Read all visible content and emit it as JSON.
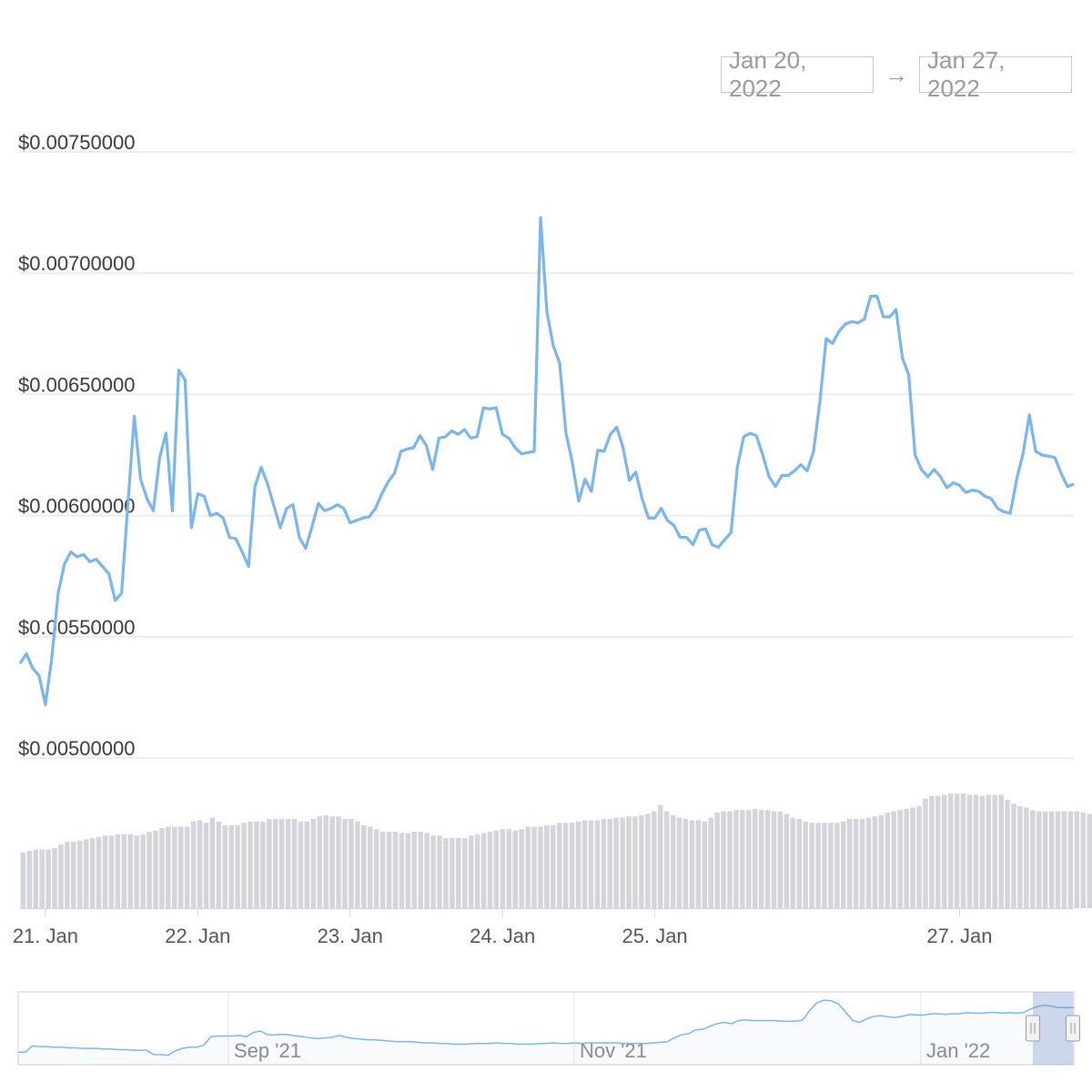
{
  "range_selector": {
    "from": "Jan 20, 2022",
    "arrow": "→",
    "to": "Jan 27, 2022"
  },
  "colors": {
    "line": "#7cb5ec",
    "volume": "#d3d5db",
    "grid": "#e9ecf2",
    "navigator_mask": "rgba(102,133,194,0.3)"
  },
  "chart_data": {
    "type": "line",
    "title": "",
    "series": [
      {
        "values": [
          0.00539,
          0.00543,
          0.00537,
          0.00534,
          0.00522,
          0.00541,
          0.00568,
          0.0058,
          0.00585,
          0.00583,
          0.00584,
          0.00581,
          0.00582,
          0.00579,
          0.00576,
          0.00565,
          0.00568,
          0.00605,
          0.00641,
          0.00615,
          0.00607,
          0.00602,
          0.00624,
          0.00634,
          0.00602,
          0.0066,
          0.00656,
          0.00595,
          0.00609,
          0.00608,
          0.006,
          0.00601,
          0.00599,
          0.00591,
          0.005905,
          0.00585,
          0.00579,
          0.00612,
          0.0062,
          0.00613,
          0.00604,
          0.00595,
          0.00603,
          0.006045,
          0.00591,
          0.005865,
          0.005955,
          0.00605,
          0.00602,
          0.00603,
          0.006045,
          0.00603,
          0.00597,
          0.00598,
          0.00599,
          0.005995,
          0.00603,
          0.00609,
          0.00614,
          0.006175,
          0.006265,
          0.006275,
          0.00628,
          0.00633,
          0.00629,
          0.00619,
          0.00632,
          0.006325,
          0.00635,
          0.006335,
          0.006355,
          0.00632,
          0.006325,
          0.006445,
          0.00644,
          0.006445,
          0.006335,
          0.00632,
          0.00628,
          0.006255,
          0.00626,
          0.006265,
          0.00723,
          0.00684,
          0.0067,
          0.00663,
          0.00634,
          0.00622,
          0.00606,
          0.00615,
          0.0061,
          0.00627,
          0.006265,
          0.006335,
          0.006365,
          0.00628,
          0.006145,
          0.00618,
          0.00607,
          0.00599,
          0.00599,
          0.00603,
          0.00598,
          0.00596,
          0.00591,
          0.00591,
          0.00588,
          0.00594,
          0.005945,
          0.00588,
          0.00587,
          0.0059,
          0.00593,
          0.0062,
          0.006325,
          0.00634,
          0.00633,
          0.00625,
          0.00616,
          0.00612,
          0.006165,
          0.006165,
          0.006185,
          0.00621,
          0.006185,
          0.006265,
          0.00647,
          0.00673,
          0.00671,
          0.00676,
          0.00679,
          0.0068,
          0.006795,
          0.00681,
          0.006905,
          0.006905,
          0.00682,
          0.00682,
          0.00685,
          0.00665,
          0.00658,
          0.00625,
          0.00619,
          0.00616,
          0.00619,
          0.00616,
          0.006115,
          0.006135,
          0.006125,
          0.006095,
          0.006105,
          0.0061,
          0.00608,
          0.00607,
          0.00603,
          0.006015,
          0.00601,
          0.00615,
          0.006255,
          0.006415,
          0.006265,
          0.00625,
          0.006245,
          0.00624,
          0.006175,
          0.00612,
          0.00613
        ]
      }
    ],
    "x_start": "2022-01-20T20:00",
    "x_step_hours": 1,
    "x_ticks": [
      "21. Jan",
      "22. Jan",
      "23. Jan",
      "24. Jan",
      "25. Jan",
      "27. Jan"
    ],
    "x_tick_dates": [
      "2022-01-21",
      "2022-01-22",
      "2022-01-23",
      "2022-01-24",
      "2022-01-25",
      "2022-01-27"
    ],
    "y_ticks": [
      "$0.00750000",
      "$0.00700000",
      "$0.00650000",
      "$0.00600000",
      "$0.00550000",
      "$0.00500000"
    ],
    "ylim": [
      0.005,
      0.0075
    ],
    "grid": true,
    "volume": [
      0.44,
      0.45,
      0.46,
      0.46,
      0.46,
      0.47,
      0.5,
      0.52,
      0.52,
      0.53,
      0.54,
      0.55,
      0.56,
      0.57,
      0.57,
      0.58,
      0.58,
      0.58,
      0.57,
      0.58,
      0.6,
      0.61,
      0.63,
      0.64,
      0.64,
      0.64,
      0.64,
      0.68,
      0.69,
      0.67,
      0.71,
      0.68,
      0.65,
      0.65,
      0.65,
      0.67,
      0.68,
      0.68,
      0.68,
      0.7,
      0.7,
      0.7,
      0.7,
      0.7,
      0.68,
      0.68,
      0.7,
      0.72,
      0.73,
      0.72,
      0.72,
      0.7,
      0.7,
      0.68,
      0.65,
      0.64,
      0.62,
      0.6,
      0.6,
      0.6,
      0.59,
      0.59,
      0.6,
      0.6,
      0.59,
      0.57,
      0.57,
      0.55,
      0.55,
      0.55,
      0.55,
      0.57,
      0.58,
      0.59,
      0.6,
      0.61,
      0.62,
      0.62,
      0.61,
      0.62,
      0.64,
      0.64,
      0.64,
      0.65,
      0.65,
      0.67,
      0.67,
      0.67,
      0.68,
      0.69,
      0.69,
      0.69,
      0.7,
      0.7,
      0.71,
      0.71,
      0.72,
      0.72,
      0.73,
      0.74,
      0.76,
      0.81,
      0.76,
      0.73,
      0.71,
      0.7,
      0.69,
      0.69,
      0.68,
      0.71,
      0.75,
      0.76,
      0.76,
      0.77,
      0.77,
      0.77,
      0.78,
      0.77,
      0.77,
      0.76,
      0.76,
      0.74,
      0.71,
      0.7,
      0.68,
      0.67,
      0.67,
      0.67,
      0.67,
      0.67,
      0.68,
      0.7,
      0.7,
      0.7,
      0.71,
      0.72,
      0.73,
      0.75,
      0.76,
      0.77,
      0.78,
      0.79,
      0.8,
      0.86,
      0.88,
      0.88,
      0.89,
      0.9,
      0.9,
      0.9,
      0.89,
      0.89,
      0.88,
      0.89,
      0.89,
      0.89,
      0.85,
      0.82,
      0.8,
      0.79,
      0.77,
      0.76,
      0.76,
      0.76,
      0.76,
      0.76,
      0.76,
      0.76,
      0.75,
      0.74,
      0.78,
      0.76,
      0.74,
      0.72,
      0.71,
      0.7,
      0.69,
      0.7
    ]
  },
  "navigator": {
    "labels": [
      "Sep '21",
      "Nov '21",
      "Jan '22"
    ],
    "values": [
      0.1,
      0.1,
      0.2,
      0.19,
      0.19,
      0.18,
      0.18,
      0.17,
      0.17,
      0.16,
      0.16,
      0.16,
      0.15,
      0.15,
      0.14,
      0.14,
      0.13,
      0.13,
      0.13,
      0.06,
      0.06,
      0.05,
      0.12,
      0.16,
      0.18,
      0.18,
      0.21,
      0.35,
      0.36,
      0.36,
      0.36,
      0.37,
      0.35,
      0.42,
      0.44,
      0.38,
      0.38,
      0.39,
      0.38,
      0.36,
      0.35,
      0.33,
      0.32,
      0.33,
      0.34,
      0.37,
      0.34,
      0.32,
      0.31,
      0.3,
      0.3,
      0.29,
      0.28,
      0.27,
      0.27,
      0.27,
      0.26,
      0.25,
      0.25,
      0.24,
      0.24,
      0.23,
      0.23,
      0.23,
      0.24,
      0.24,
      0.24,
      0.25,
      0.24,
      0.24,
      0.23,
      0.23,
      0.23,
      0.24,
      0.24,
      0.25,
      0.24,
      0.24,
      0.25,
      0.24,
      0.25,
      0.25,
      0.25,
      0.25,
      0.25,
      0.24,
      0.24,
      0.24,
      0.24,
      0.25,
      0.26,
      0.27,
      0.33,
      0.38,
      0.4,
      0.46,
      0.47,
      0.52,
      0.56,
      0.58,
      0.56,
      0.61,
      0.62,
      0.61,
      0.61,
      0.61,
      0.61,
      0.6,
      0.6,
      0.6,
      0.62,
      0.78,
      0.9,
      0.94,
      0.93,
      0.88,
      0.75,
      0.61,
      0.58,
      0.64,
      0.68,
      0.69,
      0.67,
      0.66,
      0.68,
      0.71,
      0.7,
      0.7,
      0.72,
      0.72,
      0.71,
      0.72,
      0.72,
      0.74,
      0.73,
      0.73,
      0.74,
      0.74,
      0.73,
      0.74,
      0.73,
      0.74,
      0.8,
      0.84,
      0.86,
      0.84,
      0.82,
      0.82,
      0.82
    ]
  }
}
